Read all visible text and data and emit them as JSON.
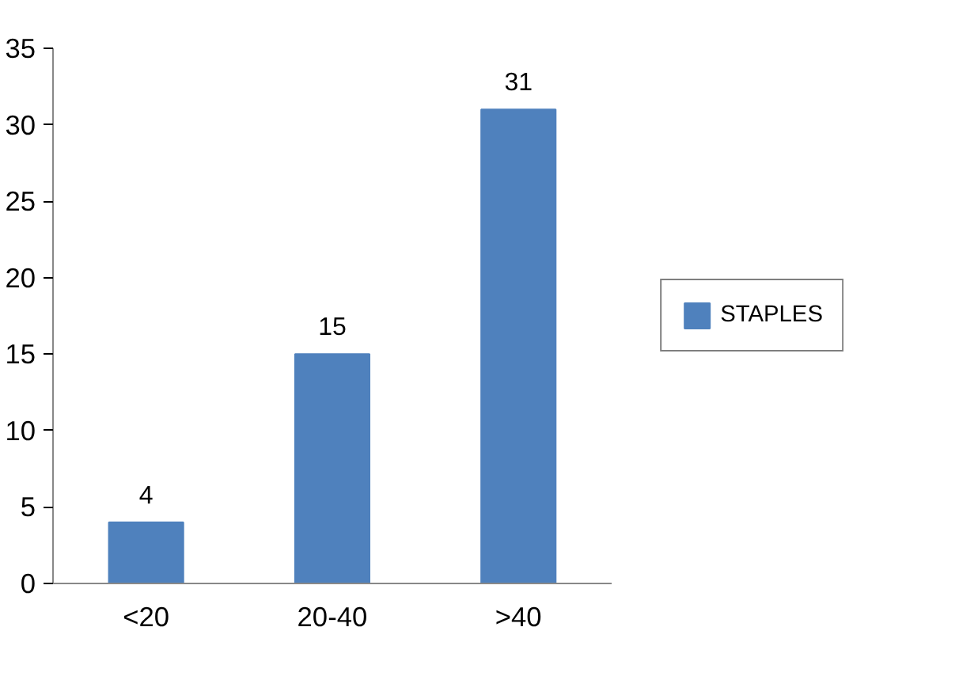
{
  "chart_data": {
    "type": "bar",
    "categories": [
      "<20",
      "20-40",
      ">40"
    ],
    "series": [
      {
        "name": "STAPLES",
        "color": "#4f81bd",
        "values": [
          4,
          15,
          31
        ]
      }
    ],
    "ylim": [
      0,
      35
    ],
    "yticks": [
      0,
      5,
      10,
      15,
      20,
      25,
      30,
      35
    ],
    "data_labels": true,
    "grid": false,
    "legend": "right"
  }
}
